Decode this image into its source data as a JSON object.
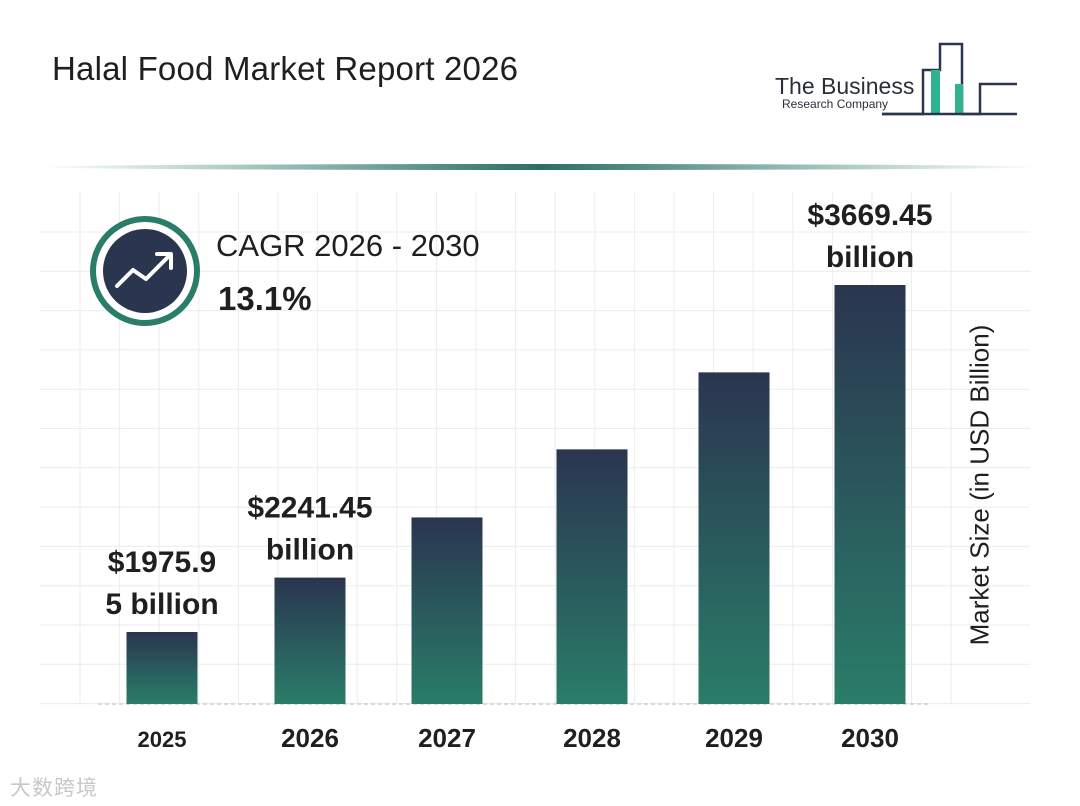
{
  "header": {
    "title": "Halal Food Market Report 2026"
  },
  "logo": {
    "line1": "The Business",
    "line2": "Research Company",
    "icon": "bar-chart-logo-icon"
  },
  "cagr": {
    "icon": "trend-up-arrow-icon",
    "label": "CAGR 2026 - 2030",
    "value": "13.1%"
  },
  "watermark": "大数跨境",
  "colors": {
    "bar_top": "#2a3550",
    "bar_bottom": "#2a7d68",
    "accent": "#2a7d68",
    "grid": "#e6e6e6",
    "text": "#1f1f1f"
  },
  "chart_data": {
    "type": "bar",
    "categories": [
      "2025",
      "2026",
      "2027",
      "2028",
      "2029",
      "2030"
    ],
    "values": [
      1975.95,
      2241.45,
      2535.1,
      2867.3,
      3243.0,
      3669.45
    ],
    "data_labels": [
      [
        "$1975.9",
        "5 billion"
      ],
      [
        "$2241.45",
        "billion"
      ],
      null,
      null,
      null,
      [
        "$3669.45",
        "billion"
      ]
    ],
    "title": "Halal Food Market Report 2026",
    "xlabel": "",
    "ylabel": "Market Size (in USD Billion)",
    "grid": true,
    "legend": "none"
  }
}
